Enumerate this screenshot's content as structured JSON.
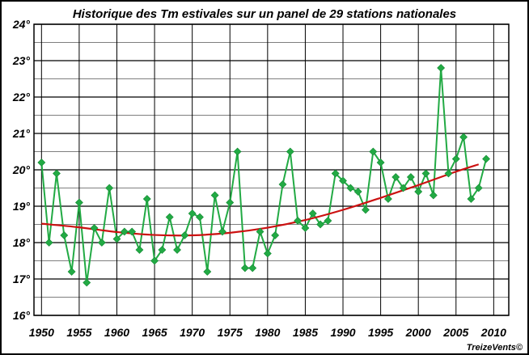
{
  "chart_data": {
    "type": "line",
    "title": "Historique des Tm estivales sur un panel de 29 stations nationales",
    "credit": "TreizeVents©",
    "x_ticks": [
      "1950",
      "1955",
      "1960",
      "1965",
      "1970",
      "1975",
      "1980",
      "1985",
      "1990",
      "1995",
      "2000",
      "2005",
      "2010"
    ],
    "y_ticks": [
      "16°",
      "17°",
      "18°",
      "19°",
      "20°",
      "21°",
      "22°",
      "23°",
      "24°"
    ],
    "xlim": [
      1949,
      2012
    ],
    "ylim": [
      16,
      24
    ],
    "grid": true,
    "colors": {
      "series": "#22aa44",
      "trend": "#cc1111",
      "grid": "#000000"
    },
    "series": [
      {
        "type": "line-markers",
        "x": [
          1950,
          1951,
          1952,
          1953,
          1954,
          1955,
          1956,
          1957,
          1958,
          1959,
          1960,
          1961,
          1962,
          1963,
          1964,
          1965,
          1966,
          1967,
          1968,
          1969,
          1970,
          1971,
          1972,
          1973,
          1974,
          1975,
          1976,
          1977,
          1978,
          1979,
          1980,
          1981,
          1982,
          1983,
          1984,
          1985,
          1986,
          1987,
          1988,
          1989,
          1990,
          1991,
          1992,
          1993,
          1994,
          1995,
          1996,
          1997,
          1998,
          1999,
          2000,
          2001,
          2002,
          2003,
          2004,
          2005,
          2006,
          2007,
          2008,
          2009
        ],
        "values": [
          20.2,
          18.0,
          19.9,
          18.2,
          17.2,
          19.1,
          16.9,
          18.4,
          18.0,
          19.5,
          18.1,
          18.3,
          18.3,
          17.8,
          19.2,
          17.5,
          17.8,
          18.7,
          17.8,
          18.2,
          18.8,
          18.7,
          17.2,
          19.3,
          18.3,
          19.1,
          20.5,
          17.3,
          17.3,
          18.3,
          17.7,
          18.2,
          19.6,
          20.5,
          18.6,
          18.4,
          18.8,
          18.5,
          18.6,
          19.9,
          19.7,
          19.5,
          19.4,
          18.9,
          20.5,
          20.2,
          19.2,
          19.8,
          19.5,
          19.8,
          19.4,
          19.9,
          19.3,
          22.8,
          19.9,
          20.3,
          20.9,
          19.2,
          19.5,
          20.3
        ]
      },
      {
        "type": "trend",
        "x": [
          1950,
          1955,
          1960,
          1965,
          1970,
          1975,
          1980,
          1985,
          1990,
          1995,
          2000,
          2005,
          2008
        ],
        "values": [
          18.52,
          18.42,
          18.29,
          18.21,
          18.2,
          18.27,
          18.41,
          18.62,
          18.9,
          19.23,
          19.58,
          19.95,
          20.15
        ]
      }
    ]
  }
}
